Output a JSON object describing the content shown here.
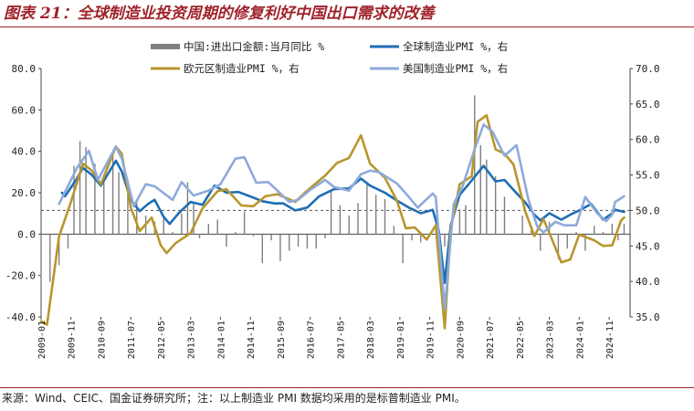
{
  "title": "图表 21：全球制造业投资周期的修复利好中国出口需求的改善",
  "source": "来源：Wind、CEIC、国金证券研究所；注：以上制造业 PMI 数据均采用的是标普制造业 PMI。",
  "chart_data": {
    "type": "bar+line",
    "x_tick_labels": [
      "2009-01",
      "2009-11",
      "2010-09",
      "2011-07",
      "2012-05",
      "2013-03",
      "2014-01",
      "2014-11",
      "2015-09",
      "2016-07",
      "2017-05",
      "2018-03",
      "2019-01",
      "2019-11",
      "2020-09",
      "2021-07",
      "2022-05",
      "2023-03",
      "2024-01",
      "2024-11"
    ],
    "left_axis": {
      "ylim": [
        -40,
        80
      ],
      "ticks": [
        "80.0",
        "60.0",
        "40.0",
        "20.0",
        "0.0",
        "-20.0",
        "-40.0"
      ]
    },
    "right_axis": {
      "ylim": [
        35,
        70
      ],
      "ticks": [
        "70.0",
        "65.0",
        "60.0",
        "55.0",
        "50.0",
        "45.0",
        "40.0",
        "35.0"
      ]
    },
    "reference_line": {
      "axis": "right",
      "value": 50
    },
    "series": [
      {
        "name": "中国:进出口金额:当月同比 %",
        "type": "bar",
        "axis": "left",
        "color": "#7f7f7f",
        "points": [
          [
            "2009-01",
            -26
          ],
          [
            "2009-04",
            -23
          ],
          [
            "2009-07",
            -15
          ],
          [
            "2009-10",
            -7
          ],
          [
            "2009-12",
            33
          ],
          [
            "2010-02",
            45
          ],
          [
            "2010-04",
            42
          ],
          [
            "2010-07",
            34
          ],
          [
            "2010-10",
            25
          ],
          [
            "2011-01",
            38
          ],
          [
            "2011-03",
            30
          ],
          [
            "2011-06",
            20
          ],
          [
            "2011-09",
            16
          ],
          [
            "2011-12",
            9
          ],
          [
            "2012-03",
            6
          ],
          [
            "2012-06",
            8
          ],
          [
            "2012-09",
            1
          ],
          [
            "2012-12",
            10
          ],
          [
            "2013-02",
            25
          ],
          [
            "2013-04",
            15
          ],
          [
            "2013-06",
            -2
          ],
          [
            "2013-09",
            5
          ],
          [
            "2013-12",
            7
          ],
          [
            "2014-03",
            -6
          ],
          [
            "2014-06",
            1
          ],
          [
            "2014-09",
            11
          ],
          [
            "2014-12",
            -1
          ],
          [
            "2015-03",
            -14
          ],
          [
            "2015-06",
            -3
          ],
          [
            "2015-09",
            -13
          ],
          [
            "2015-12",
            -8
          ],
          [
            "2016-03",
            -6
          ],
          [
            "2016-06",
            -7
          ],
          [
            "2016-09",
            -7
          ],
          [
            "2016-12",
            -2
          ],
          [
            "2017-02",
            21
          ],
          [
            "2017-05",
            14
          ],
          [
            "2017-08",
            9
          ],
          [
            "2017-11",
            15
          ],
          [
            "2018-02",
            25
          ],
          [
            "2018-05",
            19
          ],
          [
            "2018-08",
            17
          ],
          [
            "2018-11",
            4
          ],
          [
            "2019-02",
            -14
          ],
          [
            "2019-05",
            -3
          ],
          [
            "2019-08",
            -4
          ],
          [
            "2019-11",
            -1
          ],
          [
            "2020-02",
            -11
          ],
          [
            "2020-04",
            -6
          ],
          [
            "2020-06",
            3
          ],
          [
            "2020-09",
            12
          ],
          [
            "2020-11",
            14
          ],
          [
            "2021-02",
            67
          ],
          [
            "2021-04",
            43
          ],
          [
            "2021-06",
            36
          ],
          [
            "2021-09",
            28
          ],
          [
            "2021-12",
            18
          ],
          [
            "2022-03",
            0
          ],
          [
            "2022-06",
            9
          ],
          [
            "2022-09",
            3
          ],
          [
            "2022-12",
            -8
          ],
          [
            "2023-03",
            6
          ],
          [
            "2023-06",
            -12
          ],
          [
            "2023-09",
            -7
          ],
          [
            "2023-12",
            1
          ],
          [
            "2024-03",
            -8
          ],
          [
            "2024-06",
            4
          ],
          [
            "2024-09",
            1
          ],
          [
            "2024-12",
            5
          ],
          [
            "2025-02",
            -3
          ],
          [
            "2025-04",
            5
          ]
        ]
      },
      {
        "name": "全球制造业PMI %，右",
        "type": "line",
        "axis": "right",
        "color": "#1f6eb4",
        "points": [
          [
            "2009-08",
            52.5
          ],
          [
            "2009-09",
            52.0
          ],
          [
            "2010-01",
            54.5
          ],
          [
            "2010-03",
            56.0
          ],
          [
            "2010-06",
            55.0
          ],
          [
            "2010-09",
            53.5
          ],
          [
            "2011-02",
            57.0
          ],
          [
            "2011-04",
            55.5
          ],
          [
            "2011-07",
            51.5
          ],
          [
            "2011-10",
            49.9
          ],
          [
            "2012-01",
            51.0
          ],
          [
            "2012-03",
            51.5
          ],
          [
            "2012-06",
            49.1
          ],
          [
            "2012-08",
            48.1
          ],
          [
            "2012-11",
            49.6
          ],
          [
            "2013-03",
            51.2
          ],
          [
            "2013-07",
            50.8
          ],
          [
            "2013-11",
            53.5
          ],
          [
            "2014-03",
            52.5
          ],
          [
            "2014-07",
            52.6
          ],
          [
            "2014-12",
            51.8
          ],
          [
            "2015-03",
            51.3
          ],
          [
            "2015-07",
            51.0
          ],
          [
            "2015-10",
            51.0
          ],
          [
            "2016-02",
            50.0
          ],
          [
            "2016-06",
            50.4
          ],
          [
            "2016-10",
            52.0
          ],
          [
            "2017-03",
            53.0
          ],
          [
            "2017-08",
            53.1
          ],
          [
            "2017-12",
            54.5
          ],
          [
            "2018-03",
            53.5
          ],
          [
            "2018-08",
            52.5
          ],
          [
            "2018-12",
            51.4
          ],
          [
            "2019-04",
            50.4
          ],
          [
            "2019-08",
            49.6
          ],
          [
            "2019-12",
            50.1
          ],
          [
            "2020-02",
            47.2
          ],
          [
            "2020-04",
            39.8
          ],
          [
            "2020-06",
            47.9
          ],
          [
            "2020-09",
            52.2
          ],
          [
            "2020-12",
            53.7
          ],
          [
            "2021-05",
            56.3
          ],
          [
            "2021-09",
            54.1
          ],
          [
            "2021-12",
            54.3
          ],
          [
            "2022-03",
            52.9
          ],
          [
            "2022-07",
            51.1
          ],
          [
            "2022-10",
            49.4
          ],
          [
            "2022-12",
            48.6
          ],
          [
            "2023-03",
            49.6
          ],
          [
            "2023-07",
            48.7
          ],
          [
            "2023-10",
            49.4
          ],
          [
            "2024-01",
            50.0
          ],
          [
            "2024-05",
            50.9
          ],
          [
            "2024-09",
            48.7
          ],
          [
            "2024-12",
            49.6
          ],
          [
            "2025-01",
            50.1
          ],
          [
            "2025-04",
            49.8
          ]
        ]
      },
      {
        "name": "欧元区制造业PMI %，右",
        "type": "line",
        "axis": "right",
        "color": "#b8962d",
        "points": [
          [
            "2009-01",
            34.4
          ],
          [
            "2009-03",
            33.9
          ],
          [
            "2009-07",
            46.3
          ],
          [
            "2009-11",
            51.2
          ],
          [
            "2010-03",
            56.6
          ],
          [
            "2010-06",
            55.6
          ],
          [
            "2010-09",
            53.7
          ],
          [
            "2011-02",
            59.0
          ],
          [
            "2011-04",
            58.0
          ],
          [
            "2011-07",
            50.4
          ],
          [
            "2011-10",
            47.1
          ],
          [
            "2012-02",
            49.0
          ],
          [
            "2012-05",
            45.1
          ],
          [
            "2012-07",
            44.0
          ],
          [
            "2012-10",
            45.4
          ],
          [
            "2013-03",
            46.8
          ],
          [
            "2013-07",
            50.3
          ],
          [
            "2013-12",
            52.7
          ],
          [
            "2014-03",
            53.0
          ],
          [
            "2014-08",
            50.7
          ],
          [
            "2014-12",
            50.6
          ],
          [
            "2015-04",
            52.0
          ],
          [
            "2015-08",
            52.3
          ],
          [
            "2016-02",
            51.2
          ],
          [
            "2016-06",
            52.8
          ],
          [
            "2016-12",
            54.9
          ],
          [
            "2017-04",
            56.7
          ],
          [
            "2017-08",
            57.4
          ],
          [
            "2017-12",
            60.6
          ],
          [
            "2018-03",
            56.6
          ],
          [
            "2018-08",
            54.6
          ],
          [
            "2018-12",
            51.4
          ],
          [
            "2019-03",
            47.5
          ],
          [
            "2019-06",
            47.6
          ],
          [
            "2019-10",
            45.9
          ],
          [
            "2020-01",
            47.9
          ],
          [
            "2020-04",
            33.4
          ],
          [
            "2020-06",
            47.4
          ],
          [
            "2020-09",
            53.7
          ],
          [
            "2021-01",
            54.8
          ],
          [
            "2021-03",
            62.5
          ],
          [
            "2021-06",
            63.4
          ],
          [
            "2021-09",
            58.6
          ],
          [
            "2021-12",
            58.0
          ],
          [
            "2022-03",
            56.5
          ],
          [
            "2022-07",
            49.8
          ],
          [
            "2022-10",
            46.4
          ],
          [
            "2023-01",
            48.8
          ],
          [
            "2023-04",
            45.8
          ],
          [
            "2023-07",
            42.7
          ],
          [
            "2023-10",
            43.1
          ],
          [
            "2024-01",
            46.6
          ],
          [
            "2024-06",
            45.8
          ],
          [
            "2024-09",
            45.0
          ],
          [
            "2024-12",
            45.1
          ],
          [
            "2025-03",
            48.6
          ],
          [
            "2025-04",
            49.0
          ]
        ]
      },
      {
        "name": "美国制造业PMI %，右",
        "type": "line",
        "axis": "right",
        "color": "#8eaadb",
        "points": [
          [
            "2009-07",
            50.9
          ],
          [
            "2010-01",
            56.0
          ],
          [
            "2010-05",
            58.4
          ],
          [
            "2010-08",
            54.3
          ],
          [
            "2011-02",
            59.0
          ],
          [
            "2011-04",
            57.3
          ],
          [
            "2011-08",
            50.6
          ],
          [
            "2011-12",
            53.7
          ],
          [
            "2012-03",
            53.4
          ],
          [
            "2012-09",
            51.5
          ],
          [
            "2012-12",
            54.0
          ],
          [
            "2013-04",
            52.1
          ],
          [
            "2013-09",
            52.8
          ],
          [
            "2014-01",
            53.7
          ],
          [
            "2014-06",
            57.3
          ],
          [
            "2014-09",
            57.5
          ],
          [
            "2015-01",
            53.9
          ],
          [
            "2015-05",
            54.0
          ],
          [
            "2015-12",
            51.2
          ],
          [
            "2016-03",
            51.5
          ],
          [
            "2016-07",
            52.9
          ],
          [
            "2016-12",
            54.3
          ],
          [
            "2017-03",
            53.3
          ],
          [
            "2017-08",
            52.8
          ],
          [
            "2017-12",
            55.1
          ],
          [
            "2018-03",
            55.6
          ],
          [
            "2018-06",
            55.4
          ],
          [
            "2018-12",
            53.8
          ],
          [
            "2019-03",
            52.4
          ],
          [
            "2019-07",
            50.4
          ],
          [
            "2019-12",
            52.4
          ],
          [
            "2020-01",
            51.9
          ],
          [
            "2020-04",
            36.1
          ],
          [
            "2020-07",
            50.9
          ],
          [
            "2020-10",
            53.4
          ],
          [
            "2021-02",
            58.6
          ],
          [
            "2021-05",
            62.1
          ],
          [
            "2021-08",
            61.1
          ],
          [
            "2021-12",
            57.7
          ],
          [
            "2022-04",
            59.2
          ],
          [
            "2022-08",
            51.5
          ],
          [
            "2022-11",
            47.7
          ],
          [
            "2023-01",
            46.9
          ],
          [
            "2023-05",
            48.4
          ],
          [
            "2023-08",
            47.9
          ],
          [
            "2023-12",
            47.9
          ],
          [
            "2024-03",
            51.9
          ],
          [
            "2024-07",
            49.6
          ],
          [
            "2024-10",
            48.5
          ],
          [
            "2024-12",
            49.4
          ],
          [
            "2025-01",
            51.2
          ],
          [
            "2025-04",
            52.0
          ]
        ]
      }
    ]
  }
}
